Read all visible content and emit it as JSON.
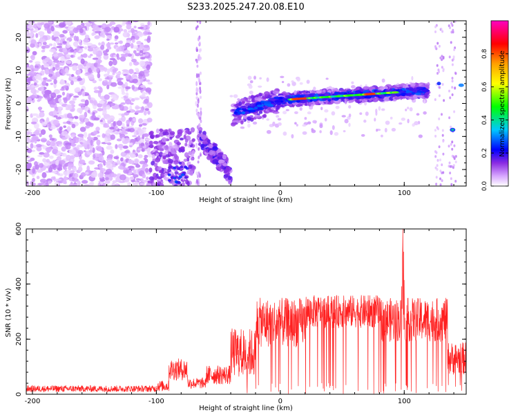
{
  "figure": {
    "title": "S233.2025.247.20.08.E10"
  },
  "chart_data": [
    {
      "type": "heatmap",
      "xlabel": "Height of straight line (km)",
      "ylabel": "Frequency (Hz)",
      "xlim": [
        -205,
        150
      ],
      "ylim": [
        -25,
        25
      ],
      "xticks": [
        "-200",
        "-100",
        "0",
        "100"
      ],
      "yticks": [
        "-20",
        "-10",
        "0",
        "10",
        "20"
      ],
      "colorbar": {
        "label": "Normalized spectral amplitude",
        "range": [
          0,
          1
        ],
        "ticks": [
          "0.0",
          "0.2",
          "0.4",
          "0.6",
          "0.8"
        ],
        "colormap": [
          "#ffffff",
          "#d8a8ff",
          "#8a2be2",
          "#0000ff",
          "#00c8ff",
          "#00ff00",
          "#ffff00",
          "#ffa000",
          "#ff0000",
          "#ff00c0"
        ]
      },
      "features": [
        {
          "x_range": [
            -205,
            -105
          ],
          "freq_range": [
            -25,
            25
          ],
          "level": "scattered noise"
        },
        {
          "x_range": [
            -105,
            -70
          ],
          "freq_range": [
            -25,
            -8
          ],
          "level": "noise and speckle"
        },
        {
          "x_range": [
            -65,
            -40
          ],
          "freq_range": [
            -22,
            -10
          ],
          "level": "descending band"
        },
        {
          "x_range": [
            -38,
            120
          ],
          "freq_start": -3,
          "freq_end": 4,
          "level": "main band",
          "peak_near_x": [
            10,
            80
          ]
        },
        {
          "x_range": [
            125,
            132
          ],
          "freq": 6,
          "level": "spot"
        },
        {
          "x_range": [
            136,
            142
          ],
          "freq": -8,
          "level": "spot"
        },
        {
          "x_range": [
            142,
            150
          ],
          "freq": 5.5,
          "level": "spot"
        }
      ]
    },
    {
      "type": "line",
      "xlabel": "Height of straight line (km)",
      "ylabel": "SNR (10 * v/v)",
      "xlim": [
        -205,
        150
      ],
      "ylim": [
        0,
        600
      ],
      "xticks": [
        "-200",
        "-100",
        "0",
        "100"
      ],
      "yticks": [
        "0",
        "200",
        "400",
        "600"
      ],
      "color": "#ff2020",
      "segments": [
        {
          "x": [
            -205,
            -100
          ],
          "snr_mean": 20,
          "snr_noise": 12
        },
        {
          "x": [
            -100,
            -90
          ],
          "snr_mean": 30,
          "snr_noise": 20
        },
        {
          "x": [
            -90,
            -75
          ],
          "snr_mean": 90,
          "snr_noise": 40
        },
        {
          "x": [
            -75,
            -60
          ],
          "snr_mean": 40,
          "snr_noise": 20
        },
        {
          "x": [
            -60,
            -40
          ],
          "snr_mean": 70,
          "snr_noise": 35
        },
        {
          "x": [
            -40,
            -20
          ],
          "snr_mean": 150,
          "snr_noise": 90
        },
        {
          "x": [
            -20,
            20
          ],
          "snr_mean": 260,
          "snr_noise": 90
        },
        {
          "x": [
            20,
            80
          ],
          "snr_mean": 300,
          "snr_noise": 60
        },
        {
          "x": [
            80,
            135
          ],
          "snr_mean": 270,
          "snr_noise": 80
        },
        {
          "x": [
            135,
            150
          ],
          "snr_mean": 130,
          "snr_noise": 60
        }
      ],
      "spike": {
        "x": 99,
        "snr": 600
      }
    }
  ]
}
